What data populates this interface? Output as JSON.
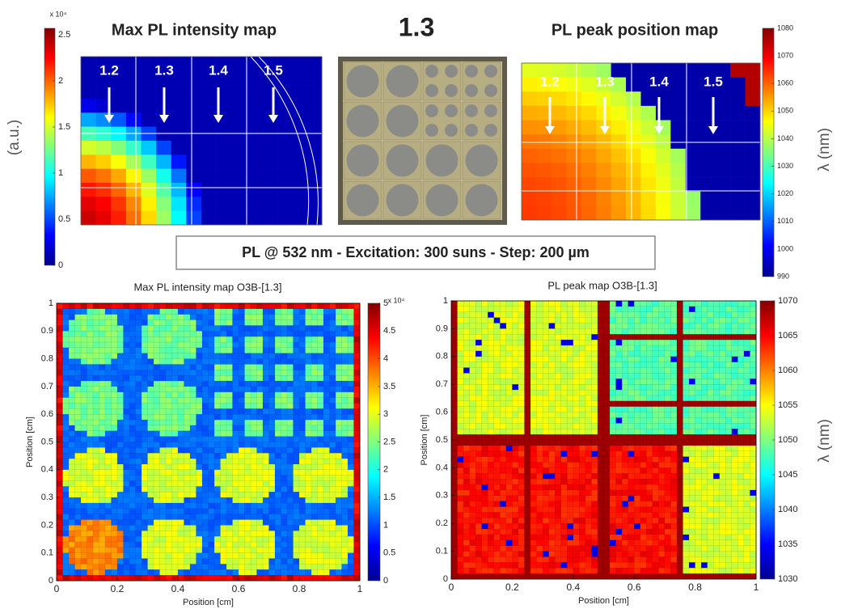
{
  "header": {
    "title": "1.3"
  },
  "banner": {
    "text": "PL @ 532 nm - Excitation: 300 suns  - Step: 200 µm"
  },
  "chart_data": [
    {
      "type": "heatmap",
      "title": "Max PL intensity map",
      "column_labels": [
        "1.2",
        "1.3",
        "1.4",
        "1.5"
      ],
      "colorbar": {
        "label": "(a.u.)",
        "exponent": "x 10⁴",
        "lim": [
          0,
          2.57
        ],
        "ticks": [
          0,
          0.5,
          1,
          1.5,
          2,
          2.5
        ]
      }
    },
    {
      "type": "heatmap",
      "title": "PL peak position map",
      "column_labels": [
        "1.2",
        "1.3",
        "1.4",
        "1.5"
      ],
      "colorbar": {
        "label": "λ (nm)",
        "lim": [
          990,
          1080
        ],
        "ticks": [
          990,
          1000,
          1010,
          1020,
          1030,
          1040,
          1050,
          1060,
          1070,
          1080
        ]
      }
    },
    {
      "type": "heatmap",
      "title": "Max PL intensity map O3B-[1.3]",
      "x_label": "Position [cm]",
      "y_label": "Position [cm]",
      "xlim": [
        0,
        1
      ],
      "ylim": [
        0,
        1
      ],
      "xticks": [
        0,
        0.2,
        0.4,
        0.6,
        0.8,
        1
      ],
      "yticks": [
        0,
        0.1,
        0.2,
        0.3,
        0.4,
        0.5,
        0.6,
        0.7,
        0.8,
        0.9,
        1
      ],
      "colorbar": {
        "exponent": "x 10⁴",
        "lim": [
          0,
          5
        ],
        "ticks": [
          0,
          0.5,
          1,
          1.5,
          2,
          2.5,
          3,
          3.5,
          4,
          4.5,
          5
        ]
      }
    },
    {
      "type": "heatmap",
      "title": "PL peak map O3B-[1.3]",
      "x_label": "Position [cm]",
      "y_label": "Position [cm]",
      "xlim": [
        0,
        1
      ],
      "ylim": [
        0,
        1
      ],
      "xticks": [
        0,
        0.2,
        0.4,
        0.6,
        0.8,
        1
      ],
      "yticks": [
        0,
        0.1,
        0.2,
        0.3,
        0.4,
        0.5,
        0.6,
        0.7,
        0.8,
        0.9,
        1
      ],
      "colorbar": {
        "label": "λ (nm)",
        "lim": [
          1030,
          1070
        ],
        "ticks": [
          1030,
          1035,
          1040,
          1045,
          1050,
          1055,
          1060,
          1065,
          1070
        ]
      }
    }
  ]
}
